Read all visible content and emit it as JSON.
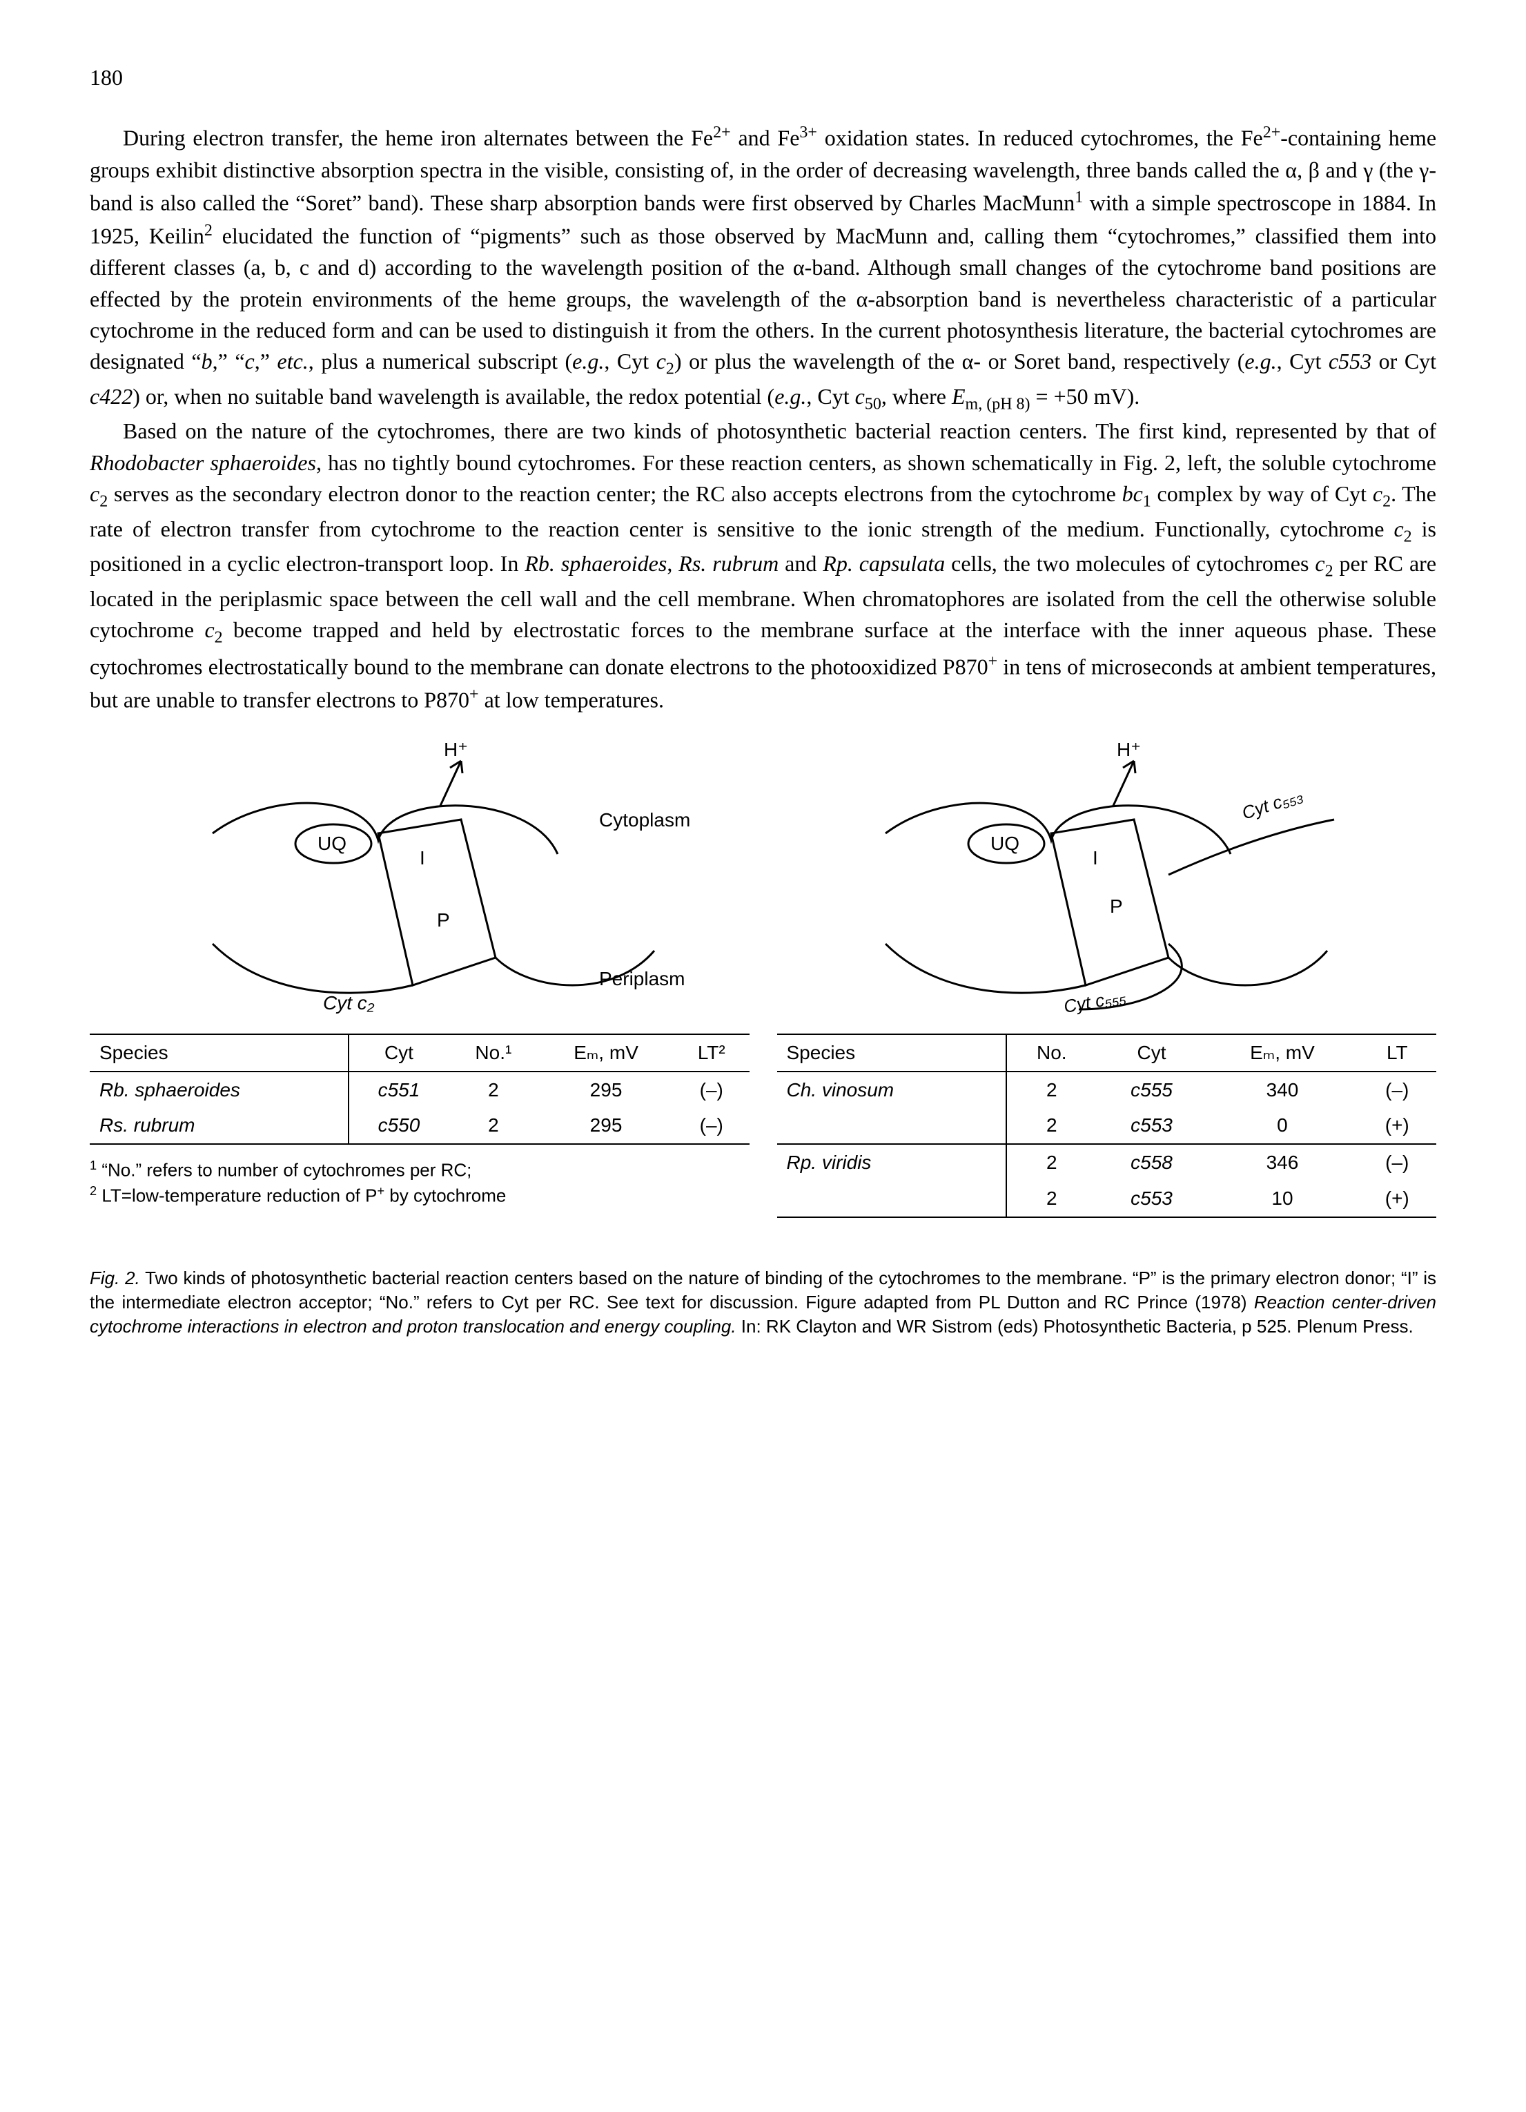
{
  "page_number": "180",
  "paragraph1_html": "During electron transfer, the heme iron alternates between the Fe<span class='sup'>2+</span> and Fe<span class='sup'>3+</span> oxidation states. In reduced cytochromes, the Fe<span class='sup'>2+</span>-containing heme groups exhibit distinctive absorption spectra in the visible, consisting of, in the order of decreasing wavelength, three bands called the α, β and γ (the γ-band is also called the “Soret” band). These sharp absorption bands were first observed by Charles MacMunn<span class='sup'>1</span> with a simple spectroscope in 1884. In 1925, Keilin<span class='sup'>2</span> elucidated the function of “pigments” such as those observed by MacMunn and, calling them “cytochromes,” classified them into different classes (a, b, c and d) according to the wavelength position of the α-band. Although small changes of the cytochrome band positions are effected by the protein environments of the heme groups, the wavelength of the α-absorption band is nevertheless characteristic of a particular cytochrome in the reduced form and can be used to distinguish it from the others. In the current photosynthesis literature, the bacterial cytochromes are designated “<span class='it'>b</span>,” “<span class='it'>c</span>,” <span class='it'>etc.</span>, plus a numerical subscript (<span class='it'>e.g.</span>, Cyt <span class='it'>c</span><span class='sub'>2</span>) or plus the wavelength of the α- or Soret band, respectively (<span class='it'>e.g.</span>, Cyt <span class='it'>c553</span> or Cyt <span class='it'>c422</span>) or, when no suitable band wavelength is available, the redox potential (<span class='it'>e.g.</span>, Cyt <span class='it'>c</span><span class='sub'>50</span>, where <span class='it'>E</span><span class='sub'>m, (pH 8)</span> = +50 mV).",
  "paragraph2_html": "Based on the nature of the cytochromes, there are two kinds of photosynthetic bacterial reaction centers. The first kind, represented by that of <span class='it'>Rhodobacter sphaeroides</span>, has no tightly bound cytochromes. For these reaction centers, as shown schematically in Fig. 2, left, the soluble cytochrome <span class='it'>c</span><span class='sub'>2</span> serves as the secondary electron donor to the reaction center; the RC also accepts electrons from the cytochrome <span class='it'>bc</span><span class='sub'>1</span> complex by way of Cyt <span class='it'>c</span><span class='sub'>2</span>. The rate of electron transfer from cytochrome to the reaction center is sensitive to the ionic strength of the medium. Functionally, cytochrome <span class='it'>c</span><span class='sub'>2</span> is positioned in a cyclic electron-transport loop. In <span class='it'>Rb. sphaeroides</span>, <span class='it'>Rs. rubrum</span> and <span class='it'>Rp. capsulata</span> cells, the two molecules of cytochromes <span class='it'>c</span><span class='sub'>2</span> per RC are located in the periplasmic space between the cell wall and the cell membrane. When chromatophores are isolated from the cell the otherwise soluble cytochrome <span class='it'>c</span><span class='sub'>2</span> become trapped and held by electrostatic forces to the membrane surface at the interface with the inner aqueous phase. These cytochromes electrostatically bound to the membrane can donate electrons to the photooxidized P870<span class='sup'>+</span> in tens of microseconds at ambient temperatures, but are unable to transfer electrons to P870<span class='sup'>+</span> at low temperatures.",
  "diagram": {
    "labels": {
      "H_plus": "H⁺",
      "UQ": "UQ",
      "I": "I",
      "P": "P",
      "Cytoplasm": "Cytoplasm",
      "Periplasm": "Periplasm",
      "Cyt_c2": "Cyt c₂",
      "Cyt_c553": "Cyt c₅₅₃",
      "Cyt_c555": "Cyt c₅₅₅"
    },
    "stroke": "#000000",
    "stroke_width": 3
  },
  "left_table": {
    "columns": [
      "Species",
      "Cyt",
      "No.¹",
      "Eₘ, mV",
      "LT²"
    ],
    "rows": [
      {
        "species": "Rb. sphaeroides",
        "cyt": "c551",
        "no": "2",
        "em": "295",
        "lt": "(–)"
      },
      {
        "species": "Rs. rubrum",
        "cyt": "c550",
        "no": "2",
        "em": "295",
        "lt": "(–)"
      }
    ]
  },
  "right_table": {
    "columns": [
      "Species",
      "No.",
      "Cyt",
      "Eₘ, mV",
      "LT"
    ],
    "rows": [
      {
        "species": "Ch. vinosum",
        "no": "2",
        "cyt": "c555",
        "em": "340",
        "lt": "(–)"
      },
      {
        "species": "",
        "no": "2",
        "cyt": "c553",
        "em": "0",
        "lt": "(+)",
        "sep_after": true
      },
      {
        "species": "Rp. viridis",
        "no": "2",
        "cyt": "c558",
        "em": "346",
        "lt": "(–)"
      },
      {
        "species": "",
        "no": "2",
        "cyt": "c553",
        "em": "10",
        "lt": "(+)"
      }
    ]
  },
  "footnotes": {
    "fn1_html": "<span class='fn-sup'>1</span> “No.” refers to number of cytochromes per RC;",
    "fn2_html": "<span class='fn-sup'>2</span> LT=low-temperature reduction of P<span class='fn-sup'>+</span> by cytochrome"
  },
  "caption_html": "<span class='it'>Fig. 2.</span> Two kinds of photosynthetic bacterial reaction centers based on the nature of binding of the cytochromes to the membrane. “P” is the primary electron donor; “I” is the intermediate electron acceptor; “No.” refers to Cyt per RC. See text for discussion. Figure adapted from PL Dutton and RC Prince (1978) <span class='it'>Reaction center-driven cytochrome interactions in electron and proton translocation and energy coupling.</span> In: RK Clayton and WR Sistrom (eds) Photosynthetic Bacteria, p 525. Plenum Press.",
  "colors": {
    "text": "#000000",
    "background": "#ffffff"
  },
  "fonts": {
    "body_family": "Times New Roman",
    "body_size_pt": 24,
    "sans_family": "Arial",
    "table_size_pt": 21,
    "caption_size_pt": 19
  }
}
